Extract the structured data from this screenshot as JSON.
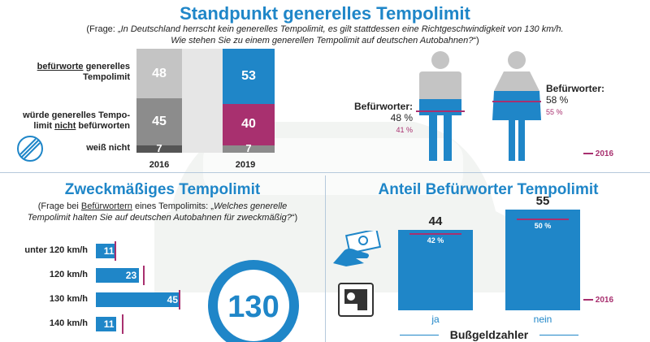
{
  "colors": {
    "blue": "#1f86c8",
    "magenta": "#a8306f",
    "gray_light": "#c4c4c4",
    "gray_mid": "#8c8c8c",
    "gray_dark": "#555555"
  },
  "top": {
    "title": "Standpunkt generelles Tempolimit",
    "question_prefix": "(Frage: „",
    "question_italic_1": "In Deutschland herrscht kein generelles Tempolimit, es gilt stattdessen eine Richtgeschwindigkeit von 130 km/h.",
    "question_italic_2": "Wie stehen Sie zu einem generellen Tempolimit auf deutschen Autobahnen?",
    "question_suffix": "“)",
    "row1_u": "befürworte",
    "row1_rest1": " generelles",
    "row1_rest2": "Tempolimit",
    "row2_line1": "würde generelles Tempo-",
    "row2_pre": "limit ",
    "row2_u": "nicht",
    "row2_post": " befürworten",
    "row3": "weiß nicht",
    "icon": "end-of-speed-limit-sign-icon"
  },
  "gender": {
    "icons": [
      "man-icon",
      "woman-icon"
    ],
    "men_label": "Befürworter:",
    "men_value": "48 %",
    "men_2016": "41 %",
    "women_label": "Befürworter:",
    "women_value": "58 %",
    "women_2016": "55 %",
    "legend": "2016"
  },
  "bottom_left": {
    "title": "Zweckmäßiges Tempolimit",
    "q_prefix": "(Frage bei ",
    "q_u": "Befürwortern",
    "q_mid": " eines Tempolimits: „",
    "q_italic_1": "Welches generelle",
    "q_italic_2": "Tempolimit halten Sie auf deutschen Autobahnen für zweckmäßig?",
    "q_suffix": "“)",
    "sign_text": "130",
    "sign_icon": "speed-limit-130-sign-icon"
  },
  "bottom_right": {
    "title": "Anteil Befürworter Tempolimit",
    "icons": [
      "money-hand-icon",
      "speed-camera-icon"
    ],
    "legend": "2016",
    "xlabel": "Bußgeldzahler"
  },
  "chart_data": [
    {
      "type": "bar",
      "stacked": true,
      "categories": [
        "2016",
        "2019"
      ],
      "series": [
        {
          "name": "befürworte generelles Tempolimit",
          "values": [
            48,
            53
          ]
        },
        {
          "name": "würde generelles Tempolimit nicht befürworten",
          "values": [
            45,
            40
          ]
        },
        {
          "name": "weiß nicht",
          "values": [
            7,
            7
          ]
        }
      ],
      "ylim": [
        0,
        100
      ]
    },
    {
      "type": "bar",
      "categories": [
        "Männer",
        "Frauen"
      ],
      "values": [
        48,
        58
      ],
      "values_2016": [
        41,
        55
      ]
    },
    {
      "type": "bar",
      "orientation": "horizontal",
      "categories": [
        "unter 120 km/h",
        "120 km/h",
        "130 km/h",
        "140 km/h"
      ],
      "values": [
        11,
        23,
        45,
        11
      ],
      "values_2016": [
        10,
        25,
        44,
        14
      ],
      "xlim": [
        0,
        50
      ]
    },
    {
      "type": "bar",
      "categories": [
        "ja",
        "nein"
      ],
      "values": [
        44,
        55
      ],
      "values_2016": [
        42,
        50
      ],
      "ylim": [
        0,
        60
      ]
    }
  ]
}
